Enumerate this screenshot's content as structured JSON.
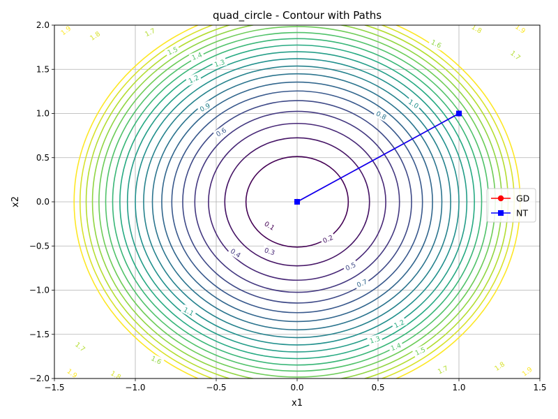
{
  "chart_data": {
    "type": "contour",
    "title": "quad_circle - Contour with Paths",
    "xlabel": "x1",
    "ylabel": "x2",
    "xlim": [
      -1.5,
      1.5
    ],
    "ylim": [
      -2.0,
      2.0
    ],
    "xticks": [
      "−1.5",
      "−1.0",
      "−0.5",
      "0.0",
      "0.5",
      "1.0",
      "1.5"
    ],
    "yticks": [
      "−2.0",
      "−1.5",
      "−1.0",
      "−0.5",
      "0.0",
      "0.5",
      "1.0",
      "1.5",
      "2.0"
    ],
    "grid": true,
    "contour_levels": [
      0.1,
      0.2,
      0.3,
      0.4,
      0.5,
      0.6,
      0.7,
      0.8,
      0.9,
      1.0,
      1.1,
      1.2,
      1.3,
      1.4,
      1.5,
      1.6,
      1.7,
      1.8,
      1.9
    ],
    "colormap": "viridis",
    "contour_labels": [
      {
        "text": "0.1",
        "level": 0.1,
        "x": -0.17,
        "y": -0.27
      },
      {
        "text": "0.2",
        "level": 0.2,
        "x": 0.19,
        "y": -0.42
      },
      {
        "text": "0.3",
        "level": 0.3,
        "x": -0.17,
        "y": -0.56
      },
      {
        "text": "0.4",
        "level": 0.4,
        "x": -0.38,
        "y": -0.58
      },
      {
        "text": "0.5",
        "level": 0.5,
        "x": 0.33,
        "y": -0.73
      },
      {
        "text": "0.6",
        "level": 0.6,
        "x": -0.47,
        "y": 0.79
      },
      {
        "text": "0.7",
        "level": 0.7,
        "x": 0.4,
        "y": -0.92
      },
      {
        "text": "0.8",
        "level": 0.8,
        "x": 0.52,
        "y": 0.98
      },
      {
        "text": "0.9",
        "level": 0.9,
        "x": -0.57,
        "y": 1.07
      },
      {
        "text": "1.0",
        "level": 1.0,
        "x": 0.72,
        "y": 1.11
      },
      {
        "text": "1.1",
        "level": 1.1,
        "x": -0.67,
        "y": -1.24
      },
      {
        "text": "1.2",
        "level": 1.2,
        "x": -0.64,
        "y": 1.39
      },
      {
        "text": "1.2",
        "level": 1.2,
        "x": 0.63,
        "y": -1.38
      },
      {
        "text": "1.3",
        "level": 1.3,
        "x": -0.48,
        "y": 1.57
      },
      {
        "text": "1.3",
        "level": 1.3,
        "x": 0.48,
        "y": -1.56
      },
      {
        "text": "1.4",
        "level": 1.4,
        "x": -0.62,
        "y": 1.65
      },
      {
        "text": "1.4",
        "level": 1.4,
        "x": 0.61,
        "y": -1.64
      },
      {
        "text": "1.5",
        "level": 1.5,
        "x": -0.77,
        "y": 1.71
      },
      {
        "text": "1.5",
        "level": 1.5,
        "x": 0.76,
        "y": -1.69
      },
      {
        "text": "1.6",
        "level": 1.6,
        "x": 0.86,
        "y": 1.79
      },
      {
        "text": "1.6",
        "level": 1.6,
        "x": -0.87,
        "y": -1.79
      },
      {
        "text": "1.7",
        "level": 1.7,
        "x": -0.91,
        "y": 1.92
      },
      {
        "text": "1.7",
        "level": 1.7,
        "x": 1.35,
        "y": 1.66
      },
      {
        "text": "1.7",
        "level": 1.7,
        "x": -1.34,
        "y": -1.64
      },
      {
        "text": "1.7",
        "level": 1.7,
        "x": 0.9,
        "y": -1.9
      },
      {
        "text": "1.8",
        "level": 1.8,
        "x": -1.25,
        "y": 1.88
      },
      {
        "text": "1.8",
        "level": 1.8,
        "x": 1.11,
        "y": 1.96
      },
      {
        "text": "1.8",
        "level": 1.8,
        "x": -1.12,
        "y": -1.96
      },
      {
        "text": "1.8",
        "level": 1.8,
        "x": 1.25,
        "y": -1.86
      },
      {
        "text": "1.9",
        "level": 1.9,
        "x": -1.43,
        "y": 1.94
      },
      {
        "text": "1.9",
        "level": 1.9,
        "x": 1.38,
        "y": 1.96
      },
      {
        "text": "1.9",
        "level": 1.9,
        "x": -1.39,
        "y": -1.94
      },
      {
        "text": "1.9",
        "level": 1.9,
        "x": 1.42,
        "y": -1.92
      }
    ],
    "series": [
      {
        "name": "GD",
        "color": "#ff0000",
        "marker": "circle",
        "x": [
          1.0,
          0.0
        ],
        "y": [
          1.0,
          0.0
        ]
      },
      {
        "name": "NT",
        "color": "#0000ff",
        "marker": "square",
        "x": [
          1.0,
          0.0
        ],
        "y": [
          1.0,
          0.0
        ]
      }
    ],
    "legend": {
      "placement": "center-right"
    }
  }
}
